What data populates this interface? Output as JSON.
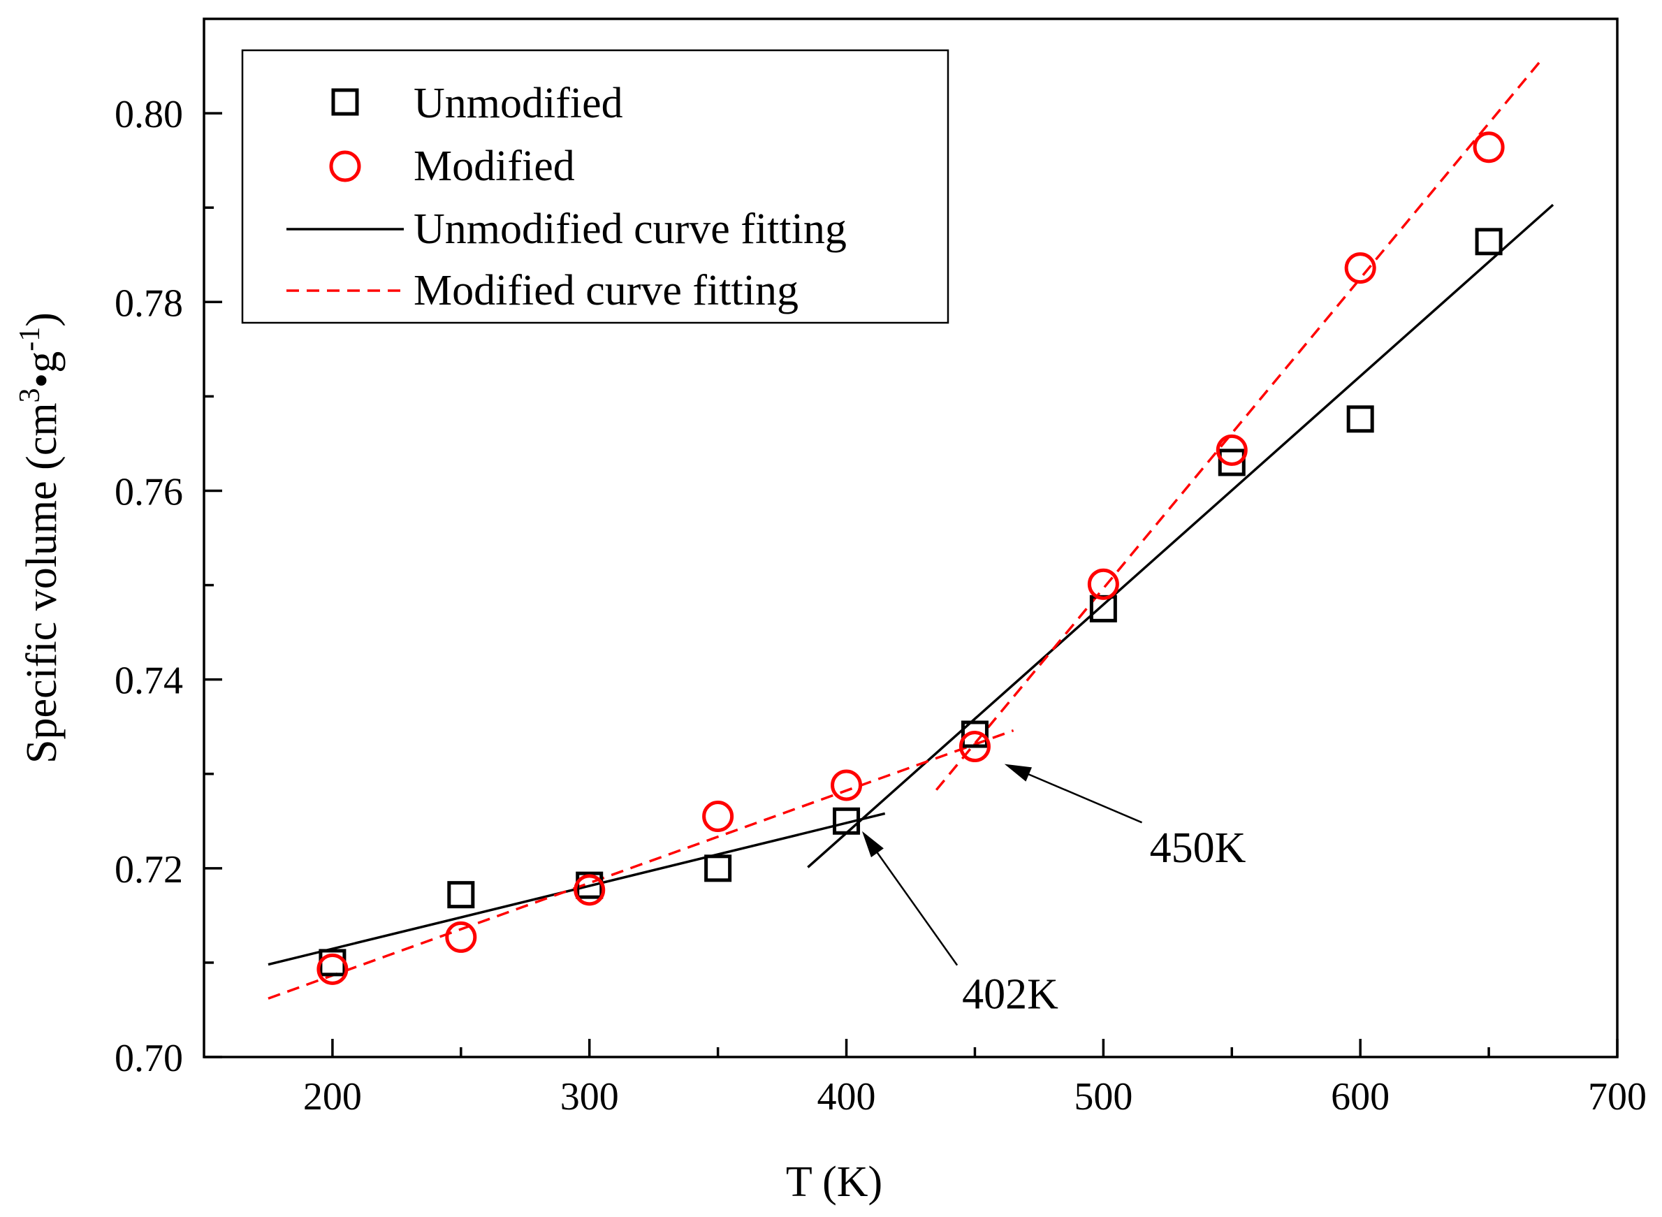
{
  "chart_data": {
    "type": "scatter",
    "title": "",
    "xlabel": "T (K)",
    "ylabel": {
      "main": "Specific volume (cm",
      "sup1": "3",
      "mid": "•g",
      "sup2": "-1",
      "end": ")"
    },
    "xlim": [
      150,
      700
    ],
    "ylim": [
      0.7,
      0.81
    ],
    "x_ticks": [
      200,
      300,
      400,
      500,
      600,
      700
    ],
    "x_tick_labels": [
      "200",
      "300",
      "400",
      "500",
      "600",
      "700"
    ],
    "y_ticks": [
      0.7,
      0.72,
      0.74,
      0.76,
      0.78,
      0.8
    ],
    "y_tick_labels": [
      "0.70",
      "0.72",
      "0.74",
      "0.76",
      "0.78",
      "0.80"
    ],
    "grid": false,
    "legend_position": "top-left",
    "series": [
      {
        "name": "Unmodified",
        "marker": "square",
        "color": "#000000",
        "x": [
          200,
          250,
          300,
          350,
          400,
          450,
          500,
          550,
          600,
          650
        ],
        "y": [
          0.71,
          0.7172,
          0.7182,
          0.72,
          0.725,
          0.7342,
          0.7475,
          0.763,
          0.7676,
          0.7864
        ]
      },
      {
        "name": "Modified",
        "marker": "circle",
        "color": "#ff0000",
        "x": [
          200,
          250,
          300,
          350,
          400,
          450,
          500,
          550,
          600,
          650
        ],
        "y": [
          0.7093,
          0.7127,
          0.7177,
          0.7255,
          0.7288,
          0.7329,
          0.7501,
          0.7643,
          0.7836,
          0.7964
        ]
      }
    ],
    "fits": [
      {
        "name": "Unmodified curve fitting",
        "style": "solid",
        "color": "#000000",
        "segments": [
          [
            [
              175,
              0.7098
            ],
            [
              415,
              0.7258
            ]
          ],
          [
            [
              385,
              0.7201
            ],
            [
              675,
              0.7903
            ]
          ]
        ]
      },
      {
        "name": "Modified curve fitting",
        "style": "dashed",
        "color": "#ff0000",
        "segments": [
          [
            [
              175,
              0.7062
            ],
            [
              465,
              0.7346
            ]
          ],
          [
            [
              435,
              0.7283
            ],
            [
              670,
              0.8055
            ]
          ]
        ]
      }
    ],
    "annotations": [
      {
        "text": "402K",
        "x": 402,
        "y": 0.7255,
        "text_x": 445,
        "text_y": 0.709
      },
      {
        "text": "450K",
        "x": 455,
        "y": 0.7318,
        "text_x": 518,
        "text_y": 0.7245
      }
    ]
  }
}
